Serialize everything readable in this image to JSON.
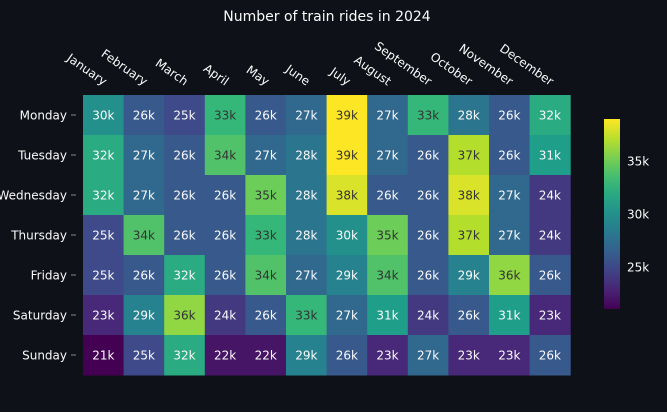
{
  "chart_data": {
    "type": "heatmap",
    "title": "Number of train rides in 2024",
    "x_categories": [
      "January",
      "February",
      "March",
      "April",
      "May",
      "June",
      "July",
      "August",
      "September",
      "October",
      "November",
      "December"
    ],
    "y_categories": [
      "Monday",
      "Tuesday",
      "Wednesday",
      "Thursday",
      "Friday",
      "Saturday",
      "Sunday"
    ],
    "values": [
      [
        30,
        26,
        25,
        33,
        26,
        27,
        39,
        27,
        33,
        28,
        26,
        32
      ],
      [
        32,
        27,
        26,
        34,
        27,
        28,
        39,
        27,
        26,
        37,
        26,
        31
      ],
      [
        32,
        27,
        26,
        26,
        35,
        28,
        38,
        26,
        26,
        38,
        27,
        24
      ],
      [
        25,
        34,
        26,
        26,
        33,
        28,
        30,
        35,
        26,
        37,
        27,
        24
      ],
      [
        25,
        26,
        32,
        26,
        34,
        27,
        29,
        34,
        26,
        29,
        36,
        26
      ],
      [
        23,
        29,
        36,
        24,
        26,
        33,
        27,
        31,
        24,
        26,
        31,
        23
      ],
      [
        21,
        25,
        32,
        22,
        22,
        29,
        26,
        23,
        27,
        23,
        23,
        26
      ]
    ],
    "value_unit_suffix": "k",
    "colorscale": "viridis",
    "color_range": [
      21,
      39
    ],
    "colorbar_ticks": [
      "25k",
      "30k",
      "35k"
    ],
    "colorbar_tick_values": [
      25,
      30,
      35
    ],
    "background": "#0e1117",
    "text_color": "#fafafa"
  }
}
